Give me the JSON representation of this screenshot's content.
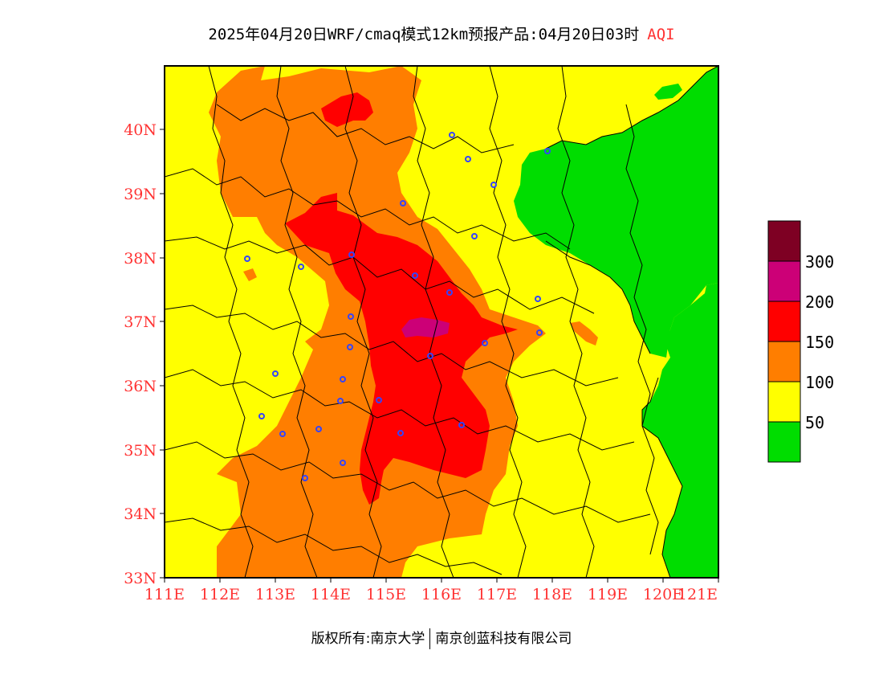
{
  "title": {
    "main": "2025年04月20日WRF/cmaq模式12km预报产品:04月20日03时",
    "variable": "AQI"
  },
  "axes": {
    "lat_labels": [
      "40N",
      "39N",
      "38N",
      "37N",
      "36N",
      "35N",
      "34N",
      "33N"
    ],
    "lon_labels": [
      "111E",
      "112E",
      "113E",
      "114E",
      "115E",
      "116E",
      "117E",
      "118E",
      "119E",
      "120E",
      "121E"
    ]
  },
  "legend": {
    "bands": [
      {
        "range": [
          0,
          50
        ],
        "color": "#00dd00"
      },
      {
        "range": [
          50,
          100
        ],
        "color": "#ffff00"
      },
      {
        "range": [
          100,
          150
        ],
        "color": "#ff7e00"
      },
      {
        "range": [
          150,
          200
        ],
        "color": "#ff0000"
      },
      {
        "range": [
          200,
          300
        ],
        "color": "#cc0077"
      },
      {
        "range": [
          300,
          500
        ],
        "color": "#7e0023"
      }
    ],
    "labels": [
      "50",
      "100",
      "150",
      "200",
      "300"
    ]
  },
  "colors": {
    "good": "#00dd00",
    "moderate": "#ffff00",
    "usg": "#ff7e00",
    "unhealthy": "#ff0000",
    "very_unhealthy": "#cc0077",
    "hazardous": "#7e0023",
    "tick_text": "#ff3333",
    "city_marker": "#3344ff"
  },
  "credit": {
    "left": "版权所有:南京大学",
    "right": "南京创蓝科技有限公司"
  }
}
